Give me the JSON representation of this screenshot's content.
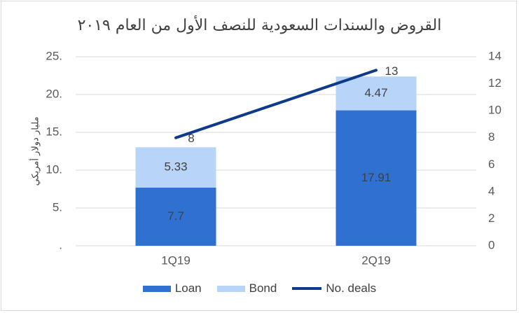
{
  "chart_data": {
    "type": "bar",
    "stacked": true,
    "title": "القروض والسندات السعودية للنصف الأول من العام ٢٠١٩",
    "ylabel": "مليار دولار أمريكي",
    "categories": [
      "1Q19",
      "2Q19"
    ],
    "series": [
      {
        "name": "Loan",
        "values": [
          7.7,
          17.91
        ],
        "labels": [
          "7.7",
          "17.91"
        ],
        "color": "#3070d0",
        "axis": "left"
      },
      {
        "name": "Bond",
        "values": [
          5.33,
          4.47
        ],
        "labels": [
          "5.33",
          "4.47"
        ],
        "color": "#b8d4f8",
        "axis": "left"
      },
      {
        "name": "No. deals",
        "type": "line",
        "values": [
          8,
          13
        ],
        "labels": [
          "8",
          "13"
        ],
        "color": "#0e3a8a",
        "axis": "right"
      }
    ],
    "ylim": [
      0,
      25
    ],
    "y2lim": [
      0,
      14
    ],
    "yticks": [
      ".",
      "5.",
      "10.",
      "15.",
      "20.",
      "25."
    ],
    "y2ticks": [
      "0",
      "2",
      "4",
      "6",
      "8",
      "10",
      "12",
      "14"
    ],
    "grid": true,
    "legend_position": "bottom"
  }
}
